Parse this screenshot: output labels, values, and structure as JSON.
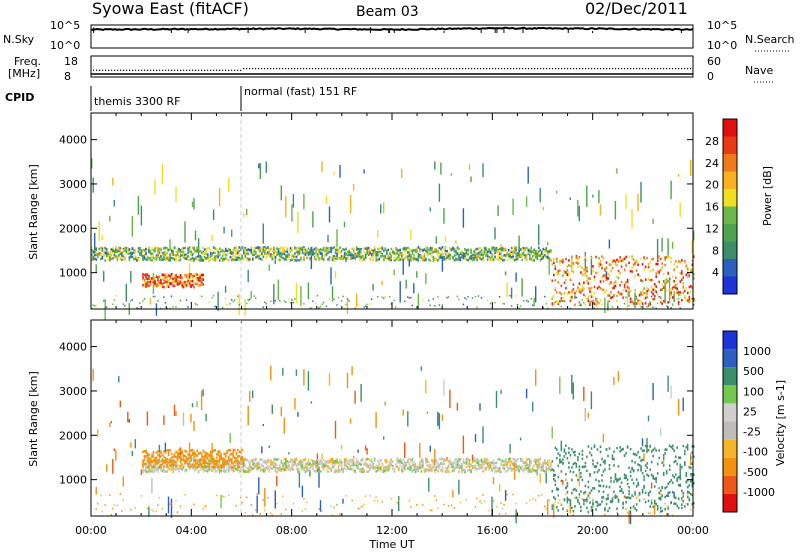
{
  "header": {
    "title": "Syowa East (fitACF)",
    "beam": "Beam 03",
    "date": "02/Dec/2011"
  },
  "panels": {
    "nsky": {
      "label": "N.Sky",
      "ticks_left": [
        "10^5",
        "10^0"
      ],
      "ticks_right": [
        "10^5",
        "10^0"
      ],
      "right_label": "N.Search"
    },
    "freq": {
      "label_line1": "Freq.",
      "label_line2": "[MHz]",
      "ticks_left": [
        "18",
        "8"
      ],
      "ticks_right": [
        "60",
        "0"
      ],
      "right_label": "Nave"
    },
    "cpid": {
      "label": "CPID",
      "segments": [
        "themis 3300 RF",
        "normal (fast) 151 RF"
      ]
    }
  },
  "colors": {
    "power": [
      "#1c34d8",
      "#2d5fbf",
      "#3d8f6a",
      "#4fa34e",
      "#6ab84a",
      "#f0e021",
      "#f9b11e",
      "#f07a1a",
      "#e83a14",
      "#e01010"
    ],
    "velocity": [
      "#e01010",
      "#ee5716",
      "#f3920c",
      "#f7b52a",
      "#bebdb8",
      "#cfd0cb",
      "#74c84f",
      "#3d8f6a",
      "#2d5fbf",
      "#1c34d8"
    ]
  },
  "chart_data": [
    {
      "type": "line",
      "title": "N.Sky",
      "x": [
        "00:00",
        "04:00",
        "08:00",
        "12:00",
        "16:00",
        "20:00",
        "00:00"
      ],
      "series": [
        {
          "values": [
            4.0,
            4.1,
            4.2,
            4.0,
            4.3,
            4.2,
            4.0
          ]
        }
      ],
      "ylim": [
        0,
        5
      ],
      "log_scale": true
    },
    {
      "type": "scatter",
      "title": "Freq.",
      "ylabel": "[MHz]",
      "x": [
        "00:00",
        "04:00",
        "06:00",
        "08:00",
        "12:00",
        "16:00",
        "20:00",
        "00:00"
      ],
      "series": [
        {
          "values": [
            11.5,
            11.5,
            11.5,
            12.3,
            12.3,
            12.3,
            12.3,
            12.3
          ]
        }
      ],
      "ylim": [
        8,
        18
      ]
    },
    {
      "type": "heatmap",
      "title": "Power [dB]",
      "xlabel": "Time UT",
      "ylabel": "Slant Range [km]",
      "x_ticks": [
        "00:00",
        "04:00",
        "08:00",
        "12:00",
        "16:00",
        "20:00",
        "00:00"
      ],
      "y_ticks": [
        1000,
        2000,
        3000,
        4000
      ],
      "ylim": [
        180,
        4600
      ],
      "colorbar": {
        "label": "Power [dB]",
        "ticks": [
          4,
          8,
          12,
          16,
          20,
          24,
          28
        ]
      },
      "features": [
        {
          "time_start": 0.0,
          "time_end": 18.3,
          "range_start": 1300,
          "range_end": 1600,
          "power": 14
        },
        {
          "time_start": 2.0,
          "time_end": 4.5,
          "range_start": 700,
          "range_end": 1000,
          "power": 26
        },
        {
          "time_start": 18.3,
          "time_end": 24.0,
          "range_start": 300,
          "range_end": 1400,
          "power": 24
        }
      ]
    },
    {
      "type": "heatmap",
      "title": "Velocity [m s-1]",
      "xlabel": "Time UT",
      "ylabel": "Slant Range [km]",
      "x_ticks": [
        "00:00",
        "04:00",
        "08:00",
        "12:00",
        "16:00",
        "20:00",
        "00:00"
      ],
      "y_ticks": [
        1000,
        2000,
        3000,
        4000
      ],
      "ylim": [
        180,
        4600
      ],
      "colorbar": {
        "label": "Velocity [m s-1]",
        "ticks": [
          1000,
          500,
          100,
          25,
          -25,
          -100,
          -500,
          -1000
        ]
      },
      "features": [
        {
          "time_start": 2.0,
          "time_end": 18.3,
          "range_start": 1200,
          "range_end": 1500,
          "velocity": 0
        },
        {
          "time_start": 2.0,
          "time_end": 6.0,
          "range_start": 1300,
          "range_end": 1700,
          "velocity": -150
        },
        {
          "time_start": 18.3,
          "time_end": 24.0,
          "range_start": 300,
          "range_end": 1800,
          "velocity": 300
        }
      ]
    }
  ]
}
